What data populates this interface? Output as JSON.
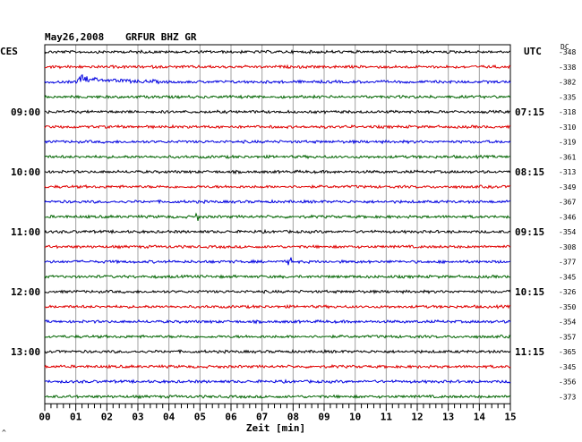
{
  "header": {
    "date": "May26,2008",
    "station": "GRFUR BHZ GR",
    "left_tz": "CES",
    "right_tz": "UTC",
    "dc_label": "DC"
  },
  "footer": {
    "xlabel": "Zeit [min]",
    "corner_mark": "^"
  },
  "colors": {
    "black": "#000000",
    "red": "#e00000",
    "blue": "#0000e0",
    "green": "#006400",
    "grid": "#a0a0a0"
  },
  "chart_data": {
    "type": "line",
    "title": "May26,2008   GRFUR BHZ GR",
    "xlabel": "Zeit [min]",
    "xlim": [
      0,
      15
    ],
    "xticks": [
      "00",
      "01",
      "02",
      "03",
      "04",
      "05",
      "06",
      "07",
      "08",
      "09",
      "10",
      "11",
      "12",
      "13",
      "14",
      "15"
    ],
    "left_time_labels": [
      {
        "trace": 4,
        "label": "09:00"
      },
      {
        "trace": 8,
        "label": "10:00"
      },
      {
        "trace": 12,
        "label": "11:00"
      },
      {
        "trace": 16,
        "label": "12:00"
      },
      {
        "trace": 20,
        "label": "13:00"
      }
    ],
    "right_time_labels": [
      {
        "trace": 4,
        "label": "07:15"
      },
      {
        "trace": 8,
        "label": "08:15"
      },
      {
        "trace": 12,
        "label": "09:15"
      },
      {
        "trace": 16,
        "label": "10:15"
      },
      {
        "trace": 20,
        "label": "11:15"
      }
    ],
    "dc_offsets": [
      -348,
      -338,
      -382,
      -335,
      -318,
      -310,
      -319,
      -361,
      -313,
      -349,
      -367,
      -346,
      -354,
      -308,
      -377,
      -345,
      -326,
      -350,
      -354,
      -357,
      -365,
      -345,
      -356,
      -373
    ],
    "trace_colors": [
      "black",
      "red",
      "blue",
      "green"
    ],
    "events": [
      {
        "trace": 2,
        "minute": 1.2,
        "kind": "teleseism"
      },
      {
        "trace": 11,
        "minute": 4.9,
        "kind": "spike"
      },
      {
        "trace": 14,
        "minute": 7.9,
        "kind": "spike"
      }
    ]
  }
}
